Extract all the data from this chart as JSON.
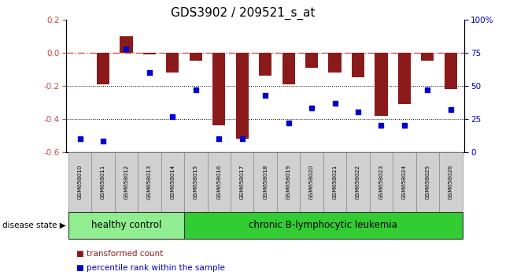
{
  "title": "GDS3902 / 209521_s_at",
  "samples": [
    "GSM658010",
    "GSM658011",
    "GSM658012",
    "GSM658013",
    "GSM658014",
    "GSM658015",
    "GSM658016",
    "GSM658017",
    "GSM658018",
    "GSM658019",
    "GSM658020",
    "GSM658021",
    "GSM658022",
    "GSM658023",
    "GSM658024",
    "GSM658025",
    "GSM658026"
  ],
  "bar_values": [
    0.0,
    -0.19,
    0.1,
    -0.01,
    -0.12,
    -0.05,
    -0.44,
    -0.52,
    -0.14,
    -0.19,
    -0.09,
    -0.12,
    -0.15,
    -0.38,
    -0.31,
    -0.05,
    -0.22
  ],
  "scatter_values": [
    10,
    8,
    78,
    60,
    27,
    47,
    10,
    10,
    43,
    22,
    33,
    37,
    30,
    20,
    20,
    47,
    32
  ],
  "ylim_left": [
    -0.6,
    0.2
  ],
  "ylim_right": [
    0,
    100
  ],
  "yticks_left": [
    -0.6,
    -0.4,
    -0.2,
    0.0,
    0.2
  ],
  "yticks_right": [
    0,
    25,
    50,
    75,
    100
  ],
  "ytick_labels_right": [
    "0",
    "25",
    "50",
    "75",
    "100%"
  ],
  "bar_color": "#8B1A1A",
  "scatter_color": "#0000CD",
  "hline_y": 0.0,
  "hline_color": "#CC5555",
  "hline_style": "-.",
  "dotted_lines": [
    -0.2,
    -0.4
  ],
  "healthy_color": "#90EE90",
  "leukemia_color": "#32CD32",
  "groups": [
    {
      "label": "healthy control",
      "start": 0,
      "end": 5,
      "color": "#90EE90"
    },
    {
      "label": "chronic B-lymphocytic leukemia",
      "start": 5,
      "end": 17,
      "color": "#32CD32"
    }
  ],
  "disease_state_label": "disease state",
  "legend_items": [
    {
      "label": "transformed count",
      "color": "#8B1A1A"
    },
    {
      "label": "percentile rank within the sample",
      "color": "#0000CD"
    }
  ],
  "title_fontsize": 11
}
